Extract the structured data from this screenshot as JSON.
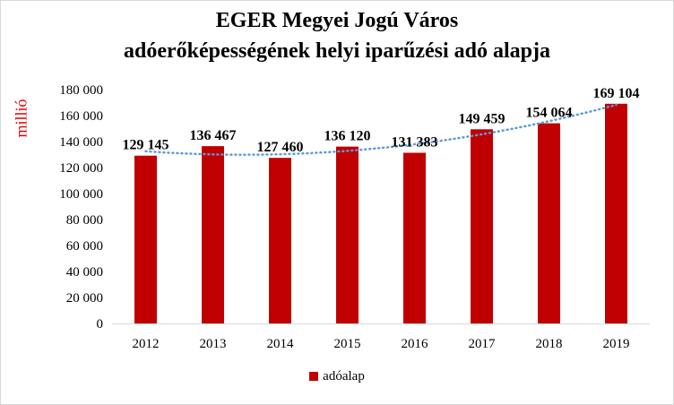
{
  "chart_data": {
    "type": "bar",
    "title": "EGER Megyei Jogú Város",
    "subtitle": "adóerőképességének helyi iparűzési adó alapja",
    "ylabel": "millió",
    "xlabel": "",
    "categories": [
      "2012",
      "2013",
      "2014",
      "2015",
      "2016",
      "2017",
      "2018",
      "2019"
    ],
    "series": [
      {
        "name": "adóalap",
        "values": [
          129145,
          136467,
          127460,
          136120,
          131383,
          149459,
          154064,
          169104
        ],
        "data_labels": [
          "129 145",
          "136 467",
          "127 460",
          "136 120",
          "131 383",
          "149 459",
          "154 064",
          "169 104"
        ],
        "color": "#c00000"
      }
    ],
    "ylim": [
      0,
      180000
    ],
    "yticks": [
      0,
      20000,
      40000,
      60000,
      80000,
      100000,
      120000,
      140000,
      160000,
      180000
    ],
    "ytick_labels": [
      "0",
      "20 000",
      "40 000",
      "60 000",
      "80 000",
      "100 000",
      "120 000",
      "140 000",
      "160 000",
      "180 000"
    ],
    "trendline": {
      "type": "polynomial",
      "style": "dotted",
      "color": "#5b9bd5"
    },
    "grid": false,
    "legend_position": "bottom"
  }
}
